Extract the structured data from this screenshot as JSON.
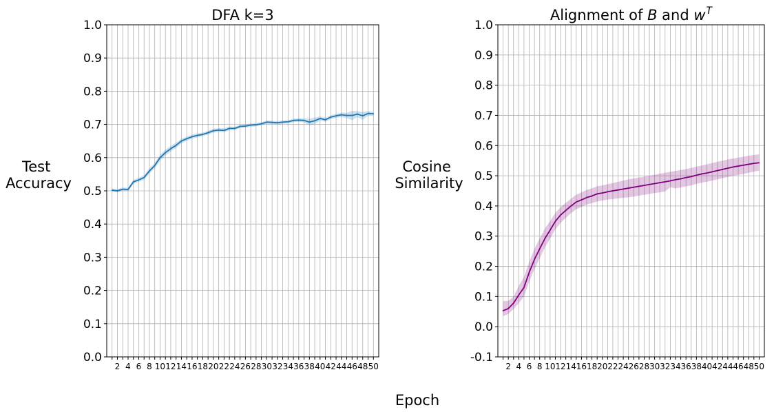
{
  "x_axis_label": "Epoch",
  "chart_data": [
    {
      "type": "line",
      "title": "DFA k=3",
      "ylabel_lines": [
        "Test",
        "Accuracy"
      ],
      "xlabel": "Epoch",
      "xlim": [
        0,
        51
      ],
      "ylim": [
        0,
        1
      ],
      "yticks": [
        0.0,
        0.1,
        0.2,
        0.3,
        0.4,
        0.5,
        0.6,
        0.7,
        0.8,
        0.9,
        1.0
      ],
      "ytick_labels": [
        "0.0",
        "0.1",
        "0.2",
        "0.3",
        "0.4",
        "0.5",
        "0.6",
        "0.7",
        "0.8",
        "0.9",
        "1.0"
      ],
      "xticks": [
        1,
        2,
        3,
        4,
        5,
        6,
        7,
        8,
        9,
        10,
        11,
        12,
        13,
        14,
        15,
        16,
        17,
        18,
        19,
        20,
        21,
        22,
        23,
        24,
        25,
        26,
        27,
        28,
        29,
        30,
        31,
        32,
        33,
        34,
        35,
        36,
        37,
        38,
        39,
        40,
        41,
        42,
        43,
        44,
        45,
        46,
        47,
        48,
        49,
        50
      ],
      "xtick_labels": [
        "",
        "2",
        "",
        "4",
        "",
        "6",
        "",
        "8",
        "",
        "10",
        "",
        "12",
        "",
        "14",
        "",
        "16",
        "",
        "18",
        "",
        "20",
        "",
        "22",
        "",
        "24",
        "",
        "26",
        "",
        "28",
        "",
        "30",
        "",
        "32",
        "",
        "34",
        "",
        "36",
        "",
        "38",
        "",
        "40",
        "",
        "42",
        "",
        "44",
        "",
        "46",
        "",
        "48",
        "",
        "50"
      ],
      "grid": true,
      "series": [
        {
          "color": "#1f77b4",
          "band_color": "#1f77b4",
          "x": [
            1,
            2,
            3,
            4,
            5,
            6,
            7,
            8,
            9,
            10,
            11,
            12,
            13,
            14,
            15,
            16,
            17,
            18,
            19,
            20,
            21,
            22,
            23,
            24,
            25,
            26,
            27,
            28,
            29,
            30,
            31,
            32,
            33,
            34,
            35,
            36,
            37,
            38,
            39,
            40,
            41,
            42,
            43,
            44,
            45,
            46,
            47,
            48,
            49,
            50
          ],
          "values": [
            0.502,
            0.5,
            0.505,
            0.504,
            0.527,
            0.533,
            0.54,
            0.56,
            0.576,
            0.6,
            0.615,
            0.627,
            0.637,
            0.65,
            0.657,
            0.663,
            0.667,
            0.67,
            0.675,
            0.681,
            0.683,
            0.682,
            0.688,
            0.688,
            0.694,
            0.695,
            0.698,
            0.699,
            0.702,
            0.707,
            0.706,
            0.705,
            0.707,
            0.708,
            0.712,
            0.713,
            0.712,
            0.707,
            0.711,
            0.718,
            0.714,
            0.722,
            0.726,
            0.729,
            0.727,
            0.727,
            0.731,
            0.726,
            0.733,
            0.732
          ],
          "lower": [
            0.497,
            0.495,
            0.5,
            0.499,
            0.521,
            0.527,
            0.533,
            0.552,
            0.568,
            0.591,
            0.606,
            0.619,
            0.629,
            0.643,
            0.651,
            0.657,
            0.661,
            0.665,
            0.669,
            0.675,
            0.677,
            0.676,
            0.682,
            0.683,
            0.689,
            0.69,
            0.693,
            0.694,
            0.697,
            0.702,
            0.701,
            0.7,
            0.702,
            0.703,
            0.707,
            0.708,
            0.706,
            0.697,
            0.701,
            0.712,
            0.708,
            0.716,
            0.72,
            0.722,
            0.719,
            0.713,
            0.722,
            0.714,
            0.726,
            0.726
          ],
          "upper": [
            0.507,
            0.505,
            0.51,
            0.509,
            0.533,
            0.539,
            0.547,
            0.568,
            0.584,
            0.609,
            0.624,
            0.635,
            0.645,
            0.657,
            0.663,
            0.669,
            0.673,
            0.675,
            0.681,
            0.687,
            0.689,
            0.688,
            0.694,
            0.693,
            0.699,
            0.7,
            0.703,
            0.704,
            0.707,
            0.712,
            0.711,
            0.71,
            0.712,
            0.713,
            0.717,
            0.718,
            0.718,
            0.717,
            0.721,
            0.724,
            0.72,
            0.728,
            0.732,
            0.736,
            0.735,
            0.741,
            0.74,
            0.738,
            0.74,
            0.738
          ]
        }
      ]
    },
    {
      "type": "line",
      "title_parts": [
        {
          "text": "Alignment of ",
          "italic": false,
          "sup": false
        },
        {
          "text": "B",
          "italic": true,
          "sup": false
        },
        {
          "text": " and ",
          "italic": false,
          "sup": false
        },
        {
          "text": "w",
          "italic": true,
          "sup": false
        },
        {
          "text": "T",
          "italic": true,
          "sup": true
        }
      ],
      "ylabel_lines": [
        "Cosine",
        "Similarity"
      ],
      "xlabel": "Epoch",
      "xlim": [
        0,
        51
      ],
      "ylim": [
        -0.1,
        1.0
      ],
      "yticks": [
        -0.1,
        0.0,
        0.1,
        0.2,
        0.3,
        0.4,
        0.5,
        0.6,
        0.7,
        0.8,
        0.9,
        1.0
      ],
      "ytick_labels": [
        "-0.1",
        "0.0",
        "0.1",
        "0.2",
        "0.3",
        "0.4",
        "0.5",
        "0.6",
        "0.7",
        "0.8",
        "0.9",
        "1.0"
      ],
      "xticks": [
        1,
        2,
        3,
        4,
        5,
        6,
        7,
        8,
        9,
        10,
        11,
        12,
        13,
        14,
        15,
        16,
        17,
        18,
        19,
        20,
        21,
        22,
        23,
        24,
        25,
        26,
        27,
        28,
        29,
        30,
        31,
        32,
        33,
        34,
        35,
        36,
        37,
        38,
        39,
        40,
        41,
        42,
        43,
        44,
        45,
        46,
        47,
        48,
        49,
        50
      ],
      "xtick_labels": [
        "",
        "2",
        "",
        "4",
        "",
        "6",
        "",
        "8",
        "",
        "10",
        "",
        "12",
        "",
        "14",
        "",
        "16",
        "",
        "18",
        "",
        "20",
        "",
        "22",
        "",
        "24",
        "",
        "26",
        "",
        "28",
        "",
        "30",
        "",
        "32",
        "",
        "34",
        "",
        "36",
        "",
        "38",
        "",
        "40",
        "",
        "42",
        "",
        "44",
        "",
        "46",
        "",
        "48",
        "",
        "50"
      ],
      "grid": true,
      "series": [
        {
          "color": "#800080",
          "band_color": "#800080",
          "x": [
            1,
            2,
            3,
            4,
            5,
            6,
            7,
            8,
            9,
            10,
            11,
            12,
            13,
            14,
            15,
            16,
            17,
            18,
            19,
            20,
            21,
            22,
            23,
            24,
            25,
            26,
            27,
            28,
            29,
            30,
            31,
            32,
            33,
            34,
            35,
            36,
            37,
            38,
            39,
            40,
            41,
            42,
            43,
            44,
            45,
            46,
            47,
            48,
            49,
            50
          ],
          "values": [
            0.053,
            0.06,
            0.078,
            0.105,
            0.13,
            0.18,
            0.223,
            0.258,
            0.292,
            0.32,
            0.349,
            0.37,
            0.385,
            0.4,
            0.413,
            0.42,
            0.428,
            0.433,
            0.44,
            0.443,
            0.447,
            0.45,
            0.453,
            0.456,
            0.459,
            0.462,
            0.465,
            0.468,
            0.471,
            0.474,
            0.477,
            0.48,
            0.483,
            0.487,
            0.49,
            0.494,
            0.497,
            0.502,
            0.506,
            0.509,
            0.513,
            0.517,
            0.521,
            0.525,
            0.529,
            0.532,
            0.535,
            0.538,
            0.541,
            0.543
          ],
          "lower": [
            0.035,
            0.042,
            0.058,
            0.078,
            0.1,
            0.15,
            0.19,
            0.226,
            0.262,
            0.292,
            0.322,
            0.344,
            0.36,
            0.376,
            0.389,
            0.397,
            0.405,
            0.409,
            0.415,
            0.418,
            0.421,
            0.423,
            0.425,
            0.427,
            0.429,
            0.431,
            0.434,
            0.437,
            0.44,
            0.443,
            0.445,
            0.448,
            0.462,
            0.458,
            0.461,
            0.465,
            0.468,
            0.473,
            0.477,
            0.48,
            0.484,
            0.488,
            0.492,
            0.496,
            0.5,
            0.503,
            0.506,
            0.51,
            0.514,
            0.517
          ],
          "upper": [
            0.085,
            0.085,
            0.1,
            0.135,
            0.165,
            0.215,
            0.258,
            0.292,
            0.325,
            0.35,
            0.377,
            0.396,
            0.41,
            0.424,
            0.437,
            0.445,
            0.453,
            0.458,
            0.465,
            0.468,
            0.472,
            0.476,
            0.48,
            0.484,
            0.488,
            0.491,
            0.494,
            0.497,
            0.5,
            0.503,
            0.507,
            0.51,
            0.513,
            0.516,
            0.519,
            0.522,
            0.526,
            0.53,
            0.534,
            0.538,
            0.542,
            0.546,
            0.55,
            0.554,
            0.557,
            0.56,
            0.563,
            0.566,
            0.569,
            0.571
          ]
        }
      ]
    }
  ]
}
